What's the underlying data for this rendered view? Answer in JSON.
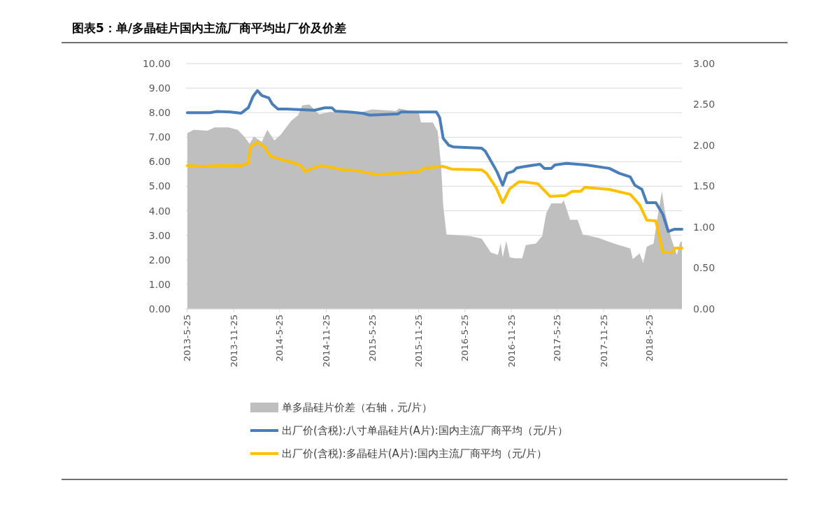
{
  "chart_data": {
    "type": "line",
    "title": "图表5：单/多晶硅片国内主流厂商平均出厂价及价差",
    "xlim": [
      "2013-05-20",
      "2018-09-30"
    ],
    "xticks": [
      {
        "value": "2013-05-25",
        "label": "2013-5-25"
      },
      {
        "value": "2013-11-25",
        "label": "2013-11-25"
      },
      {
        "value": "2014-05-25",
        "label": "2014-5-25"
      },
      {
        "value": "2014-11-25",
        "label": "2014-11-25"
      },
      {
        "value": "2015-05-25",
        "label": "2015-5-25"
      },
      {
        "value": "2015-11-25",
        "label": "2015-11-25"
      },
      {
        "value": "2016-05-25",
        "label": "2016-5-25"
      },
      {
        "value": "2016-11-25",
        "label": "2016-11-25"
      },
      {
        "value": "2017-05-25",
        "label": "2017-5-25"
      },
      {
        "value": "2017-11-25",
        "label": "2017-11-25"
      },
      {
        "value": "2018-05-25",
        "label": "2018-5-25"
      }
    ],
    "ylim": [
      0,
      10
    ],
    "yticks": [
      {
        "value": 0,
        "label": "0.00"
      },
      {
        "value": 1,
        "label": "1.00"
      },
      {
        "value": 2,
        "label": "2.00"
      },
      {
        "value": 3,
        "label": "3.00"
      },
      {
        "value": 4,
        "label": "4.00"
      },
      {
        "value": 5,
        "label": "5.00"
      },
      {
        "value": 6,
        "label": "6.00"
      },
      {
        "value": 7,
        "label": "7.00"
      },
      {
        "value": 8,
        "label": "8.00"
      },
      {
        "value": 9,
        "label": "9.00"
      },
      {
        "value": 10,
        "label": "10.00"
      }
    ],
    "y2lim": [
      0,
      3
    ],
    "y2ticks": [
      {
        "value": 0,
        "label": "0.00"
      },
      {
        "value": 0.5,
        "label": "0.50"
      },
      {
        "value": 1,
        "label": "1.00"
      },
      {
        "value": 1.5,
        "label": "1.50"
      },
      {
        "value": 2,
        "label": "2.00"
      },
      {
        "value": 2.5,
        "label": "2.50"
      },
      {
        "value": 3,
        "label": "3.00"
      }
    ],
    "grid": "y",
    "legend": "bottom",
    "marker": "none",
    "line_style": "solid",
    "series": [
      {
        "name": "单多晶硅片价差（右轴，元/片）",
        "type": "area",
        "axis": "y2",
        "color": "#bfbfbf",
        "x": [
          "2013-05-25",
          "2013-06-19",
          "2013-08-13",
          "2013-09-10",
          "2013-11-04",
          "2013-12-10",
          "2014-01-07",
          "2014-01-26",
          "2014-02-12",
          "2014-03-15",
          "2014-04-06",
          "2014-05-04",
          "2014-05-29",
          "2014-07-09",
          "2014-08-06",
          "2014-08-22",
          "2014-09-19",
          "2014-10-28",
          "2014-12-11",
          "2015-02-05",
          "2015-02-24",
          "2015-04-19",
          "2015-05-24",
          "2015-08-27",
          "2015-09-09",
          "2015-11-26",
          "2015-12-04",
          "2016-01-20",
          "2016-02-08",
          "2016-02-22",
          "2016-03-01",
          "2016-03-14",
          "2016-06-14",
          "2016-07-31",
          "2016-09-05",
          "2016-10-03",
          "2016-10-14",
          "2016-10-22",
          "2016-11-05",
          "2016-11-19",
          "2016-12-08",
          "2017-01-07",
          "2017-01-21",
          "2017-03-02",
          "2017-03-27",
          "2017-04-12",
          "2017-05-02",
          "2017-06-12",
          "2017-06-20",
          "2017-07-15",
          "2017-08-14",
          "2017-09-03",
          "2017-11-03",
          "2018-01-05",
          "2018-03-10",
          "2018-03-20",
          "2018-04-16",
          "2018-04-30",
          "2018-05-14",
          "2018-06-10",
          "2018-06-27",
          "2018-07-13",
          "2018-07-24",
          "2018-08-19",
          "2018-09-10",
          "2018-09-24",
          "2018-09-30"
        ],
        "values": [
          2.15,
          2.19,
          2.18,
          2.22,
          2.22,
          2.19,
          2.1,
          2.02,
          2.11,
          2.04,
          2.19,
          2.06,
          2.13,
          2.3,
          2.37,
          2.49,
          2.5,
          2.38,
          2.41,
          2.4,
          2.41,
          2.41,
          2.44,
          2.42,
          2.45,
          2.4,
          2.28,
          2.28,
          2.17,
          1.74,
          1.26,
          0.91,
          0.89,
          0.86,
          0.69,
          0.66,
          0.8,
          0.63,
          0.83,
          0.63,
          0.62,
          0.62,
          0.78,
          0.8,
          0.89,
          1.17,
          1.29,
          1.29,
          1.33,
          1.09,
          1.09,
          0.91,
          0.87,
          0.8,
          0.74,
          0.61,
          0.68,
          0.56,
          0.76,
          0.8,
          1.15,
          1.44,
          1.2,
          0.86,
          0.66,
          0.82,
          0.82
        ]
      },
      {
        "name": "出厂价(含税):八寸单晶硅片(A片):国内主流厂商平均（元/片）",
        "color": "#4a7ebb",
        "x": [
          "2013-05-25",
          "2013-08-22",
          "2013-09-19",
          "2013-11-12",
          "2013-12-24",
          "2014-01-21",
          "2014-02-09",
          "2014-02-26",
          "2014-03-15",
          "2014-04-12",
          "2014-04-26",
          "2014-05-18",
          "2014-06-20",
          "2014-10-09",
          "2014-11-19",
          "2014-12-17",
          "2014-12-31",
          "2015-02-24",
          "2015-04-19",
          "2015-05-16",
          "2015-09-04",
          "2015-09-17",
          "2016-02-03",
          "2016-02-16",
          "2016-03-01",
          "2016-03-23",
          "2016-04-11",
          "2016-07-31",
          "2016-08-14",
          "2016-09-10",
          "2016-09-30",
          "2016-10-22",
          "2016-11-08",
          "2016-12-03",
          "2016-12-16",
          "2017-01-13",
          "2017-03-18",
          "2017-04-04",
          "2017-05-02",
          "2017-05-16",
          "2017-07-01",
          "2017-09-17",
          "2017-12-17",
          "2018-01-25",
          "2018-03-10",
          "2018-03-28",
          "2018-04-25",
          "2018-05-14",
          "2018-06-19",
          "2018-07-16",
          "2018-08-07",
          "2018-09-01",
          "2018-09-30"
        ],
        "values": [
          8.0,
          8.0,
          8.05,
          8.03,
          7.98,
          8.2,
          8.67,
          8.9,
          8.7,
          8.6,
          8.35,
          8.15,
          8.15,
          8.1,
          8.2,
          8.2,
          8.06,
          8.03,
          7.97,
          7.9,
          7.95,
          8.03,
          8.03,
          7.8,
          6.95,
          6.67,
          6.6,
          6.55,
          6.43,
          5.95,
          5.58,
          5.04,
          5.53,
          5.61,
          5.75,
          5.8,
          5.9,
          5.73,
          5.73,
          5.87,
          5.93,
          5.87,
          5.73,
          5.53,
          5.38,
          5.04,
          4.87,
          4.33,
          4.33,
          3.87,
          3.16,
          3.25,
          3.25
        ]
      },
      {
        "name": "出厂价(含税):多晶硅片(A片):国内主流厂商平均（元/片）",
        "color": "#ffc000",
        "x": [
          "2013-05-25",
          "2013-07-25",
          "2013-09-19",
          "2013-12-24",
          "2014-01-21",
          "2014-01-29",
          "2014-02-26",
          "2014-03-29",
          "2014-04-17",
          "2014-05-10",
          "2014-06-20",
          "2014-08-14",
          "2014-09-03",
          "2014-10-01",
          "2014-11-05",
          "2014-12-11",
          "2015-01-28",
          "2015-03-22",
          "2015-05-16",
          "2015-06-13",
          "2015-11-26",
          "2015-12-15",
          "2016-03-01",
          "2016-04-03",
          "2016-07-31",
          "2016-08-19",
          "2016-09-25",
          "2016-10-22",
          "2016-11-19",
          "2016-12-25",
          "2017-01-13",
          "2017-03-10",
          "2017-04-27",
          "2017-06-26",
          "2017-07-23",
          "2017-08-26",
          "2017-09-11",
          "2017-12-17",
          "2018-03-10",
          "2018-04-16",
          "2018-05-14",
          "2018-06-19",
          "2018-07-16",
          "2018-08-22",
          "2018-09-04",
          "2018-09-30"
        ],
        "values": [
          5.84,
          5.81,
          5.84,
          5.84,
          5.95,
          6.6,
          6.8,
          6.57,
          6.24,
          6.15,
          6.04,
          5.87,
          5.6,
          5.73,
          5.84,
          5.78,
          5.67,
          5.64,
          5.53,
          5.47,
          5.6,
          5.73,
          5.81,
          5.7,
          5.67,
          5.53,
          4.96,
          4.33,
          4.9,
          5.18,
          5.18,
          5.1,
          4.59,
          4.62,
          4.79,
          4.79,
          4.96,
          4.87,
          4.67,
          4.24,
          3.62,
          3.59,
          2.31,
          2.31,
          2.48,
          2.48
        ]
      }
    ]
  }
}
